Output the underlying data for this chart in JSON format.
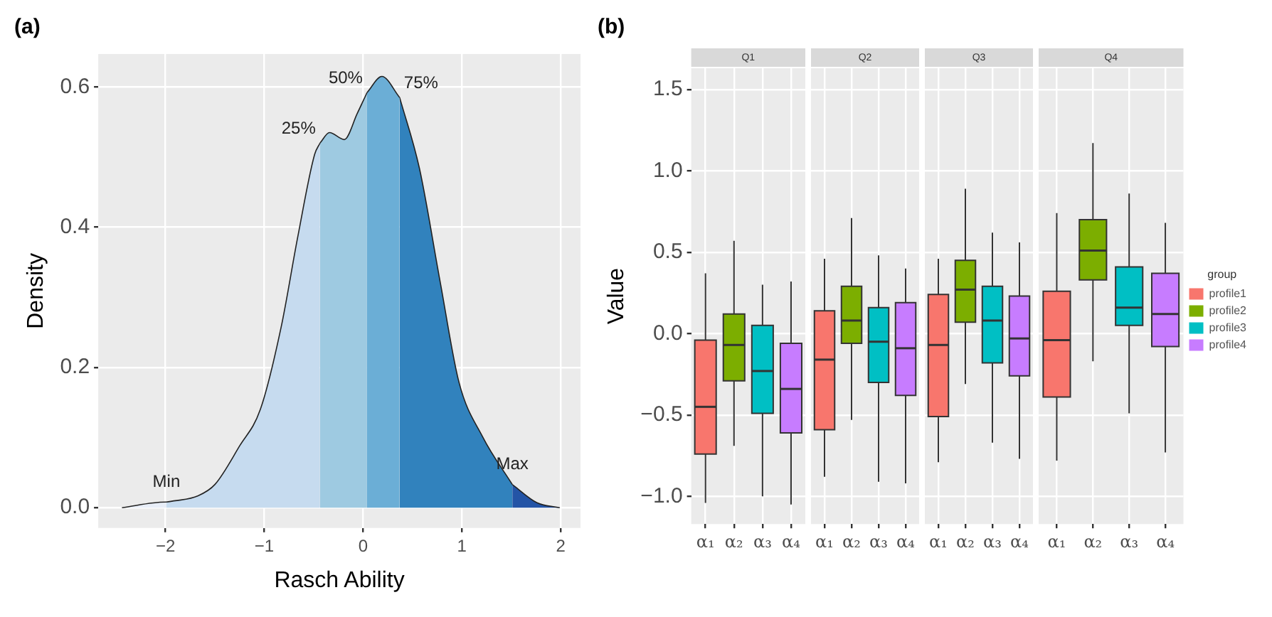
{
  "chart_data": [
    {
      "type": "area",
      "title": "(a)",
      "xlabel": "Rasch Ability",
      "ylabel": "Density",
      "xlim": [
        -2.68,
        2.2
      ],
      "ylim": [
        -0.029,
        0.647
      ],
      "xticks": [
        {
          "value": -2,
          "label": "−2"
        },
        {
          "value": -1,
          "label": "−1"
        },
        0,
        1,
        2
      ],
      "yticks": [
        {
          "value": 0,
          "label": "0.0"
        },
        {
          "value": 0.2,
          "label": "0.2"
        },
        {
          "value": 0.4,
          "label": "0.4"
        },
        {
          "value": 0.6,
          "label": "0.6"
        }
      ],
      "grid": true,
      "series": [
        {
          "color": "#e8eef8",
          "x": [
            -2.44,
            -2.0,
            -1.99
          ],
          "values": [
            0,
            0.008,
            0.008
          ]
        },
        {
          "color": "#c6dbef",
          "x": [
            -1.99,
            -1.67,
            -1.5,
            -1.25,
            -1.04,
            -0.83,
            -0.66,
            -0.49,
            -0.436
          ],
          "values": [
            0.008,
            0.017,
            0.033,
            0.088,
            0.14,
            0.257,
            0.387,
            0.504,
            0.52
          ]
        },
        {
          "color": "#9ecae1",
          "x": [
            -0.436,
            -0.34,
            -0.19,
            -0.06,
            0.04
          ],
          "values": [
            0.52,
            0.535,
            0.525,
            0.562,
            0.592
          ]
        },
        {
          "color": "#6baed6",
          "x": [
            0.04,
            0.19,
            0.37
          ],
          "values": [
            0.592,
            0.615,
            0.585
          ]
        },
        {
          "color": "#3182bd",
          "x": [
            0.37,
            0.57,
            0.78,
            0.97,
            1.21,
            1.51
          ],
          "values": [
            0.585,
            0.484,
            0.322,
            0.179,
            0.101,
            0.033
          ]
        },
        {
          "color": "#2454a6",
          "x": [
            1.51,
            1.76,
            1.99
          ],
          "values": [
            0.033,
            0.007,
            0
          ]
        }
      ],
      "annotations": [
        "Min",
        "25%",
        "50%",
        "75%",
        "Max"
      ]
    },
    {
      "type": "box",
      "title": "(b)",
      "subtitle": "Q1",
      "ylabel": "Value",
      "categories": [
        "α₁",
        "α₂",
        "α₃",
        "α₄"
      ],
      "ylim": [
        -1.17,
        1.63
      ],
      "yticks": [
        {
          "value": -1,
          "label": "−1.0"
        },
        {
          "value": -0.5,
          "label": "−0.5"
        },
        {
          "value": 0,
          "label": "0.0"
        },
        {
          "value": 0.5,
          "label": "0.5"
        },
        {
          "value": 1,
          "label": "1.0"
        },
        {
          "value": 1.5,
          "label": "1.5"
        }
      ],
      "grid": true,
      "series": [
        {
          "color": "#f8766d",
          "boxes": [
            {
              "low": -1.04,
              "q1": -0.74,
              "median": -0.45,
              "q3": -0.04,
              "high": 0.37
            },
            null,
            null,
            null
          ]
        },
        {
          "color": "#7cae00",
          "boxes": [
            null,
            {
              "low": -0.69,
              "q1": -0.29,
              "median": -0.07,
              "q3": 0.12,
              "high": 0.57
            },
            null,
            null
          ]
        },
        {
          "color": "#00bfc4",
          "boxes": [
            null,
            null,
            {
              "low": -1.0,
              "q1": -0.49,
              "median": -0.23,
              "q3": 0.05,
              "high": 0.3
            },
            null
          ]
        },
        {
          "color": "#c77cff",
          "boxes": [
            null,
            null,
            null,
            {
              "low": -1.05,
              "q1": -0.61,
              "median": -0.34,
              "q3": -0.06,
              "high": 0.32
            }
          ]
        }
      ]
    },
    {
      "type": "box",
      "subtitle": "Q2",
      "categories": [
        "α₁",
        "α₂",
        "α₃",
        "α₄"
      ],
      "ylim": [
        -1.17,
        1.63
      ],
      "yticks": [
        -1,
        -0.5,
        0,
        0.5,
        1,
        1.5
      ],
      "grid": true,
      "tick_labels": "x",
      "series": [
        {
          "color": "#f8766d",
          "boxes": [
            {
              "low": -0.88,
              "q1": -0.59,
              "median": -0.16,
              "q3": 0.14,
              "high": 0.46
            },
            null,
            null,
            null
          ]
        },
        {
          "color": "#7cae00",
          "boxes": [
            null,
            {
              "low": -0.53,
              "q1": -0.06,
              "median": 0.08,
              "q3": 0.29,
              "high": 0.71
            },
            null,
            null
          ]
        },
        {
          "color": "#00bfc4",
          "boxes": [
            null,
            null,
            {
              "low": -0.91,
              "q1": -0.3,
              "median": -0.05,
              "q3": 0.16,
              "high": 0.48
            },
            null
          ]
        },
        {
          "color": "#c77cff",
          "boxes": [
            null,
            null,
            null,
            {
              "low": -0.92,
              "q1": -0.38,
              "median": -0.09,
              "q3": 0.19,
              "high": 0.4
            }
          ]
        }
      ]
    },
    {
      "type": "box",
      "subtitle": "Q3",
      "categories": [
        "α₁",
        "α₂",
        "α₃",
        "α₄"
      ],
      "ylim": [
        -1.17,
        1.63
      ],
      "yticks": [
        -1,
        -0.5,
        0,
        0.5,
        1,
        1.5
      ],
      "grid": true,
      "tick_labels": "x",
      "series": [
        {
          "color": "#f8766d",
          "boxes": [
            {
              "low": -0.79,
              "q1": -0.51,
              "median": -0.07,
              "q3": 0.24,
              "high": 0.46
            },
            null,
            null,
            null
          ]
        },
        {
          "color": "#7cae00",
          "boxes": [
            null,
            {
              "low": -0.31,
              "q1": 0.07,
              "median": 0.27,
              "q3": 0.45,
              "high": 0.89
            },
            null,
            null
          ]
        },
        {
          "color": "#00bfc4",
          "boxes": [
            null,
            null,
            {
              "low": -0.67,
              "q1": -0.18,
              "median": 0.08,
              "q3": 0.29,
              "high": 0.62
            },
            null
          ]
        },
        {
          "color": "#c77cff",
          "boxes": [
            null,
            null,
            null,
            {
              "low": -0.77,
              "q1": -0.26,
              "median": -0.03,
              "q3": 0.23,
              "high": 0.56
            }
          ]
        }
      ]
    },
    {
      "type": "box",
      "subtitle": "Q4",
      "categories": [
        "α₁",
        "α₂",
        "α₃",
        "α₄"
      ],
      "ylim": [
        -1.17,
        1.63
      ],
      "yticks": [
        -1,
        -0.5,
        0,
        0.5,
        1,
        1.5
      ],
      "grid": true,
      "tick_labels": "x",
      "legend": "right",
      "legend_title": "group",
      "series": [
        {
          "name": "profile1",
          "color": "#f8766d",
          "boxes": [
            {
              "low": -0.78,
              "q1": -0.39,
              "median": -0.04,
              "q3": 0.26,
              "high": 0.74
            },
            null,
            null,
            null
          ]
        },
        {
          "name": "profile2",
          "color": "#7cae00",
          "boxes": [
            null,
            {
              "low": -0.17,
              "q1": 0.33,
              "median": 0.51,
              "q3": 0.7,
              "high": 1.17
            },
            null,
            null
          ]
        },
        {
          "name": "profile3",
          "color": "#00bfc4",
          "boxes": [
            null,
            null,
            {
              "low": -0.49,
              "q1": 0.05,
              "median": 0.16,
              "q3": 0.41,
              "high": 0.86
            },
            null
          ]
        },
        {
          "name": "profile4",
          "color": "#c77cff",
          "boxes": [
            null,
            null,
            null,
            {
              "low": -0.73,
              "q1": -0.08,
              "median": 0.12,
              "q3": 0.37,
              "high": 0.68
            }
          ]
        }
      ]
    }
  ]
}
